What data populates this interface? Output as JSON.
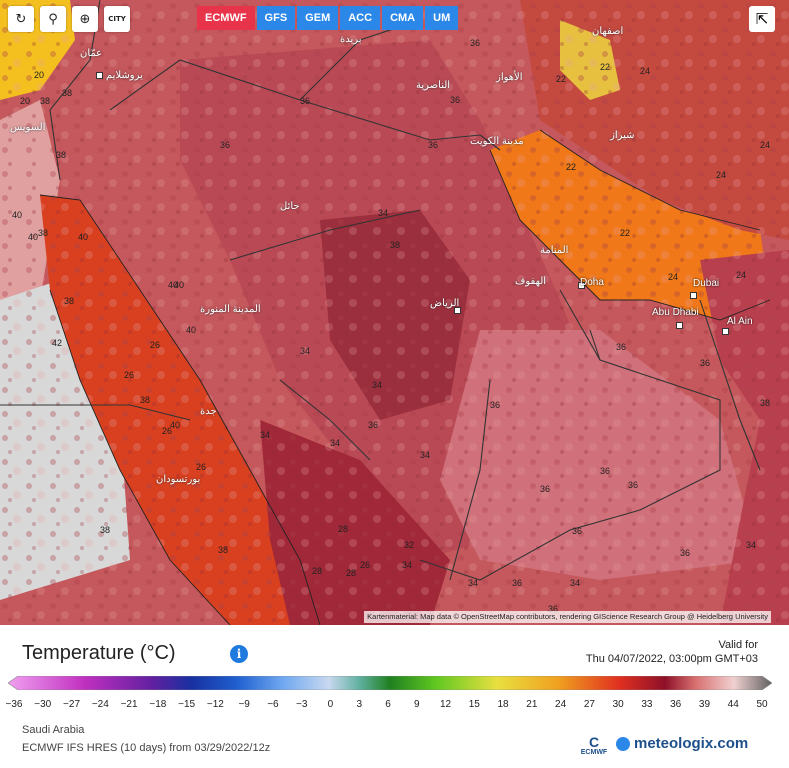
{
  "toolbar": {
    "reset_icon": "↻",
    "locate_icon": "⚲",
    "zoom_icon": "⊕",
    "city_label": "CITY"
  },
  "models": [
    "ECMWF",
    "GFS",
    "GEM",
    "ACC",
    "CMA",
    "UM"
  ],
  "active_model": "ECMWF",
  "share_icon": "⇱",
  "attribution": "Kartenmaterial: Map data © OpenStreetMap contributors, rendering GIScience Research Group @ Heidelberg University",
  "map_labels": {
    "cities_latin": [
      "Doha",
      "Dubai",
      "Abu Dhabi",
      "Al Ain"
    ],
    "cities_arabic": [
      "عمّان",
      "يروشلايم",
      "السويس",
      "حائل",
      "المدينة المنورة",
      "جدة",
      "الرياض",
      "الهفوف",
      "المنامة",
      "مدينة الكويت",
      "الأهواز",
      "اصفهان",
      "شيراز",
      "الناصرية",
      "بورتسودان",
      "بريدة"
    ],
    "temperature_values": [
      "20",
      "20",
      "38",
      "38",
      "40",
      "42",
      "36",
      "36",
      "36",
      "36",
      "34",
      "34",
      "34",
      "34",
      "34",
      "34",
      "34",
      "36",
      "36",
      "36",
      "38",
      "38",
      "38",
      "40",
      "40",
      "40",
      "38",
      "36",
      "38",
      "26",
      "26",
      "26",
      "26",
      "22",
      "22",
      "24",
      "24",
      "24",
      "22",
      "22",
      "28",
      "28",
      "38",
      "36",
      "36",
      "36",
      "36",
      "36",
      "34",
      "34",
      "36",
      "38",
      "38",
      "40",
      "40",
      "40",
      "36",
      "36",
      "32",
      "28",
      "34",
      "26",
      "24",
      "24"
    ]
  },
  "legend": {
    "title": "Temperature (°C)",
    "info_icon": "i",
    "valid_label": "Valid for",
    "valid_time": "Thu 04/07/2022, 03:00pm GMT+03",
    "ticks": [
      "−36",
      "−30",
      "−27",
      "−24",
      "−21",
      "−18",
      "−15",
      "−12",
      "−9",
      "−6",
      "−3",
      "0",
      "3",
      "6",
      "9",
      "12",
      "15",
      "18",
      "21",
      "24",
      "27",
      "30",
      "33",
      "36",
      "39",
      "44",
      "50"
    ]
  },
  "region": "Saudi Arabia",
  "model_info": "ECMWF IFS HRES (10 days) from 03/29/2022/12z",
  "logos": {
    "ecmwf": "ECMWF",
    "brand": "meteologix.com"
  },
  "colors": {
    "active_model": "#e8344a",
    "model": "#2c88e8",
    "land_hot": "#c55a5c",
    "sea_gulf": "#f07818",
    "red_sea": "#d84020"
  }
}
